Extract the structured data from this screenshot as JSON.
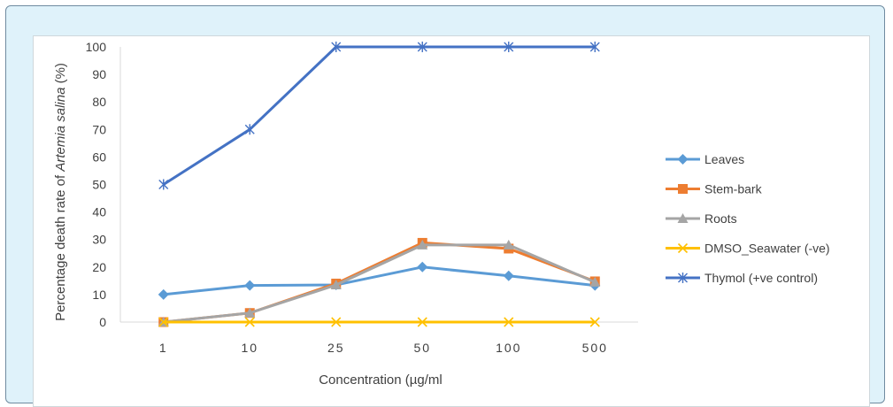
{
  "chart_data": {
    "type": "line",
    "categories": [
      "1",
      "10",
      "25",
      "50",
      "100",
      "500"
    ],
    "xlabel": "Concentration (µg/ml",
    "ylabel_prefix": "Percentage death rate of ",
    "ylabel_italic": "Artemia salina",
    "ylabel_suffix": " (%)",
    "ylim": [
      0,
      100
    ],
    "yticks": [
      0,
      10,
      20,
      30,
      40,
      50,
      60,
      70,
      80,
      90,
      100
    ],
    "grid": false,
    "legend_position": "right",
    "series": [
      {
        "name": "Leaves",
        "color": "#5b9bd5",
        "marker": "diamond",
        "values": [
          10,
          13.3,
          13.5,
          20,
          16.8,
          13.3
        ]
      },
      {
        "name": "Stem-bark",
        "color": "#ed7d31",
        "marker": "square",
        "values": [
          0,
          3.3,
          14,
          28.8,
          26.7,
          14.8
        ]
      },
      {
        "name": "Roots",
        "color": "#a5a5a5",
        "marker": "triangle",
        "values": [
          0,
          3.3,
          13.5,
          28,
          28,
          14.5
        ]
      },
      {
        "name": "DMSO_Seawater (-ve)",
        "color": "#ffc000",
        "marker": "x",
        "values": [
          0,
          0,
          0,
          0,
          0,
          0
        ]
      },
      {
        "name": "Thymol (+ve control)",
        "color": "#4472c4",
        "marker": "star",
        "values": [
          50,
          70,
          100,
          100,
          100,
          100
        ]
      }
    ]
  }
}
